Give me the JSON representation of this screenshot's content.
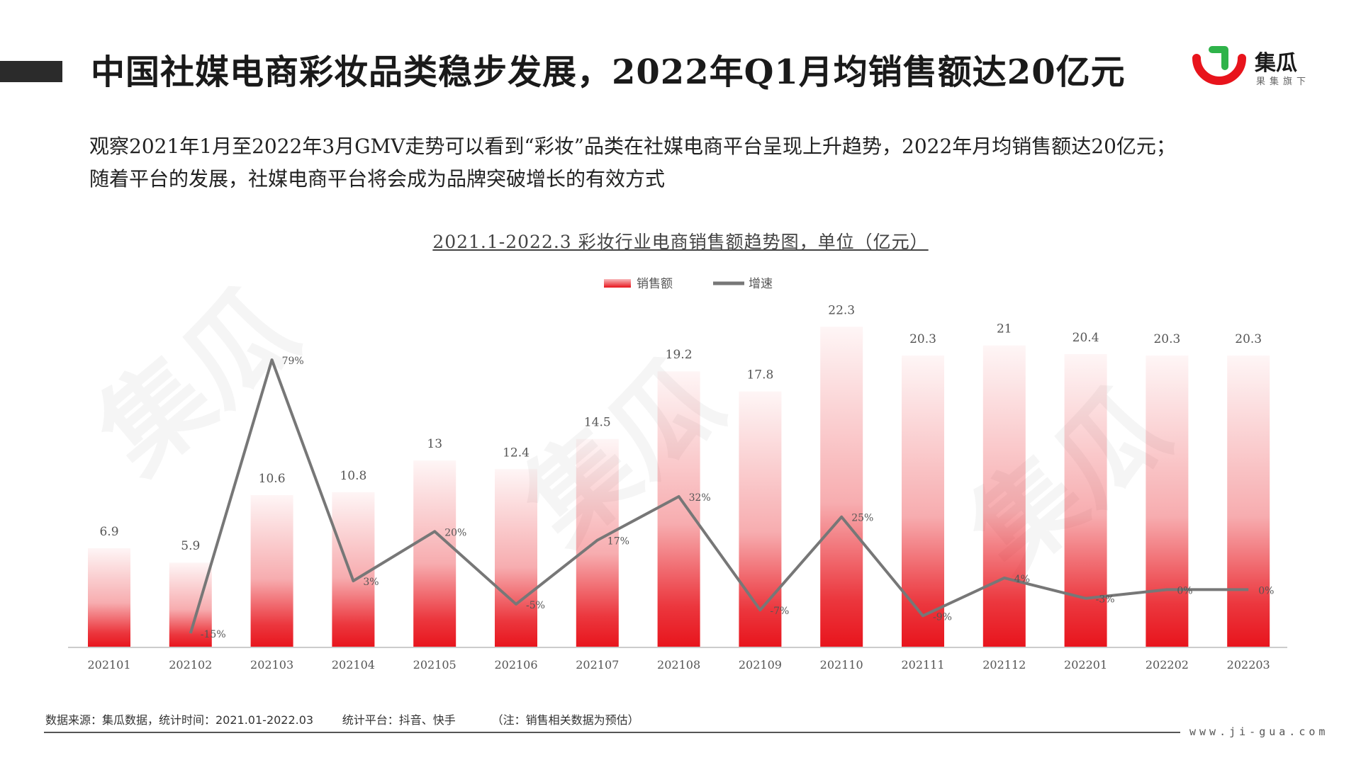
{
  "header": {
    "title": "中国社媒电商彩妆品类稳步发展，2022年Q1月均销售额达20亿元",
    "logo_name": "集瓜",
    "logo_sub": "果集旗下"
  },
  "description": {
    "line1": "观察2021年1月至2022年3月GMV走势可以看到“彩妆”品类在社媒电商平台呈现上升趋势，2022年月均销售额达20亿元；",
    "line2": "随着平台的发展，社媒电商平台将会成为品牌突破增长的有效方式"
  },
  "chart_data": {
    "type": "bar",
    "title": "2021.1-2022.3 彩妆行业电商销售额趋势图，单位（亿元）",
    "legend_position": "top-center",
    "categories": [
      "202101",
      "202102",
      "202103",
      "202104",
      "202105",
      "202106",
      "202107",
      "202108",
      "202109",
      "202110",
      "202111",
      "202112",
      "202201",
      "202202",
      "202203"
    ],
    "series": [
      {
        "name": "销售额",
        "type": "bar",
        "values": [
          6.9,
          5.9,
          10.6,
          10.8,
          13,
          12.4,
          14.5,
          19.2,
          17.8,
          22.3,
          20.3,
          21,
          20.4,
          20.3,
          20.3
        ],
        "labels": [
          "6.9",
          "5.9",
          "10.6",
          "10.8",
          "13",
          "12.4",
          "14.5",
          "19.2",
          "17.8",
          "22.3",
          "20.3",
          "21",
          "20.4",
          "20.3",
          "20.3"
        ],
        "color": "#e8141c"
      },
      {
        "name": "增速",
        "type": "line",
        "values": [
          null,
          -15,
          79,
          3,
          20,
          -5,
          17,
          32,
          -7,
          25,
          -9,
          4,
          -3,
          0,
          0
        ],
        "labels": [
          "",
          "-15%",
          "79%",
          "3%",
          "20%",
          "-5%",
          "17%",
          "32%",
          "-7%",
          "25%",
          "-9%",
          "4%",
          "-3%",
          "0%",
          "0%"
        ],
        "color": "#777777"
      }
    ],
    "grid": false
  },
  "footer": {
    "source": "数据来源：集瓜数据，统计时间：2021.01-2022.03",
    "platform": "统计平台：抖音、快手",
    "note": "（注：销售相关数据为预估）",
    "url": "www.ji-gua.com"
  },
  "colors": {
    "accent": "#e8141c",
    "logo_green": "#2fb34a",
    "line": "#777777"
  }
}
